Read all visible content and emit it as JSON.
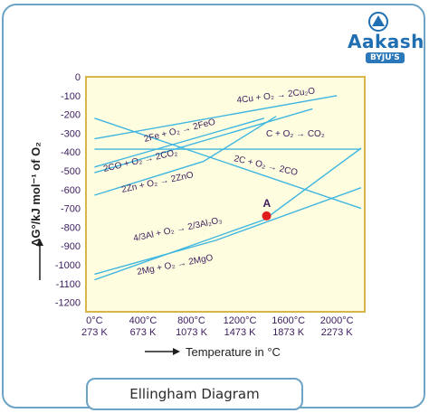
{
  "logo": {
    "name": "Aakash",
    "sub": "BYJU'S",
    "icon": "triangle-logo-icon"
  },
  "caption": "Ellingham Diagram",
  "axes": {
    "y_label": "ΔG°/kJ mol⁻¹ of O₂",
    "x_label": "Temperature in °C",
    "y_ticks": [
      "0",
      "-100",
      "-200",
      "-300",
      "-400",
      "-500",
      "-600",
      "-700",
      "-800",
      "-900",
      "-1000",
      "-1100",
      "-1200"
    ],
    "x_ticks_c": [
      "0°C",
      "400°C",
      "800°C",
      "1200°C",
      "1600°C",
      "2000°C"
    ],
    "x_ticks_k": [
      "273 K",
      "673 K",
      "1073 K",
      "1473 K",
      "1873 K",
      "2273 K"
    ]
  },
  "colors": {
    "line": "#3fb6e0",
    "plot_border": "#d8b54a",
    "point": "#e01e1e",
    "label": "#5b2a86",
    "text": "#3b1c5c"
  },
  "point": {
    "label": "A",
    "x": 1420,
    "y": -740
  },
  "reactions": [
    {
      "label": "4Cu + O₂ → 2Cu₂O",
      "points": [
        [
          0,
          -330
        ],
        [
          2000,
          -100
        ]
      ]
    },
    {
      "label": "2Fe + O₂ → 2FeO",
      "points": [
        [
          0,
          -480
        ],
        [
          1400,
          -220
        ]
      ]
    },
    {
      "label": "C + O₂ → CO₂",
      "points": [
        [
          0,
          -385
        ],
        [
          2200,
          -385
        ]
      ]
    },
    {
      "label": "2CO + O₂ → 2CO₂",
      "points": [
        [
          0,
          -510
        ],
        [
          1800,
          -170
        ]
      ]
    },
    {
      "label": "2C + O₂ → 2CO",
      "points": [
        [
          0,
          -220
        ],
        [
          2200,
          -700
        ]
      ]
    },
    {
      "label": "2Zn + O₂ → 2ZnO",
      "points": [
        [
          0,
          -630
        ],
        [
          900,
          -450
        ],
        [
          1500,
          -210
        ]
      ]
    },
    {
      "label": "4/3Al + O₂ → 2/3Al₂O₃",
      "points": [
        [
          0,
          -1050
        ],
        [
          1000,
          -870
        ],
        [
          2200,
          -590
        ]
      ]
    },
    {
      "label": "2Mg + O₂ → 2MgO",
      "points": [
        [
          0,
          -1080
        ],
        [
          1400,
          -760
        ],
        [
          2200,
          -380
        ]
      ]
    }
  ]
}
